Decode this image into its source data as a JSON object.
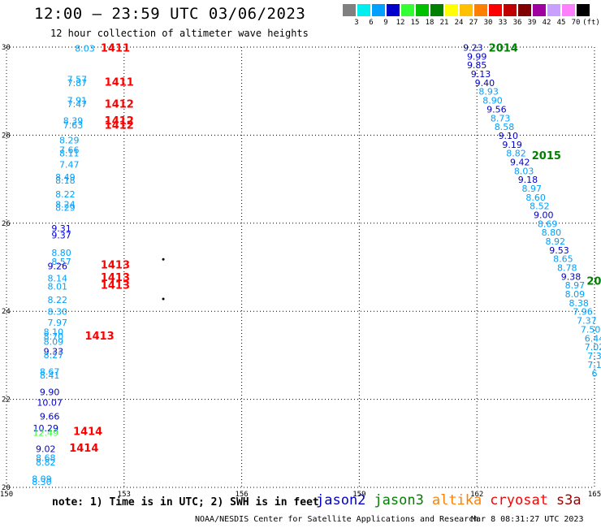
{
  "header": {
    "title": "12:00 — 23:59 UTC 03/06/2023",
    "subtitle": "12 hour collection of altimeter wave heights"
  },
  "colorscale": {
    "unit": "(ft)",
    "bins": [
      {
        "label": "3",
        "color": "#808080"
      },
      {
        "label": "6",
        "color": "#00eeee"
      },
      {
        "label": "9",
        "color": "#00a0ff"
      },
      {
        "label": "12",
        "color": "#0000cc"
      },
      {
        "label": "15",
        "color": "#33ff33"
      },
      {
        "label": "18",
        "color": "#00c000"
      },
      {
        "label": "21",
        "color": "#008000"
      },
      {
        "label": "24",
        "color": "#ffff00"
      },
      {
        "label": "27",
        "color": "#ffc000"
      },
      {
        "label": "30",
        "color": "#ff8000"
      },
      {
        "label": "33",
        "color": "#ff0000"
      },
      {
        "label": "36",
        "color": "#c00000"
      },
      {
        "label": "39",
        "color": "#800000"
      },
      {
        "label": "42",
        "color": "#a000a0"
      },
      {
        "label": "45",
        "color": "#c8a0ff"
      },
      {
        "label": "70",
        "color": "#ff80ff"
      },
      {
        "label": "",
        "color": "#000000"
      }
    ]
  },
  "chart_data": {
    "type": "scatter",
    "title": "12:00 — 23:59 UTC 03/06/2023",
    "subtitle": "12 hour collection of altimeter wave heights",
    "xlim": [
      150,
      165
    ],
    "ylim": [
      20,
      30
    ],
    "x_ticks": [
      "150",
      "153",
      "156",
      "159",
      "162",
      "165"
    ],
    "y_ticks": [
      "20",
      "22",
      "24",
      "26",
      "28",
      "30"
    ],
    "series": [
      {
        "name": "track-left",
        "points": [
          {
            "x": 152.0,
            "y": 29.97,
            "v": "8.03"
          },
          {
            "x": 151.8,
            "y": 29.27,
            "v": "7.57"
          },
          {
            "x": 151.8,
            "y": 29.19,
            "v": "7.87"
          },
          {
            "x": 151.8,
            "y": 28.79,
            "v": "7.91"
          },
          {
            "x": 151.8,
            "y": 28.71,
            "v": "7.47"
          },
          {
            "x": 151.7,
            "y": 28.33,
            "v": "8.39"
          },
          {
            "x": 151.7,
            "y": 28.23,
            "v": "7.63"
          },
          {
            "x": 151.6,
            "y": 27.89,
            "v": "8.29"
          },
          {
            "x": 151.6,
            "y": 27.67,
            "v": "7.66"
          },
          {
            "x": 151.6,
            "y": 27.59,
            "v": "8.11"
          },
          {
            "x": 151.6,
            "y": 27.33,
            "v": "7.47"
          },
          {
            "x": 151.5,
            "y": 27.05,
            "v": "8.49"
          },
          {
            "x": 151.5,
            "y": 26.97,
            "v": "8.18"
          },
          {
            "x": 151.5,
            "y": 26.66,
            "v": "8.22"
          },
          {
            "x": 151.5,
            "y": 26.43,
            "v": "8.24"
          },
          {
            "x": 151.5,
            "y": 26.36,
            "v": "8.29"
          },
          {
            "x": 151.4,
            "y": 25.89,
            "v": "9.31"
          },
          {
            "x": 151.4,
            "y": 25.73,
            "v": "9.37"
          },
          {
            "x": 151.4,
            "y": 25.33,
            "v": "8.80"
          },
          {
            "x": 151.4,
            "y": 25.13,
            "v": "8.57"
          },
          {
            "x": 151.3,
            "y": 25.03,
            "v": "9.26"
          },
          {
            "x": 151.3,
            "y": 24.75,
            "v": "8.14"
          },
          {
            "x": 151.3,
            "y": 24.57,
            "v": "8.01"
          },
          {
            "x": 151.3,
            "y": 24.26,
            "v": "8.22"
          },
          {
            "x": 151.3,
            "y": 23.99,
            "v": "8.30"
          },
          {
            "x": 151.3,
            "y": 23.75,
            "v": "7.97"
          },
          {
            "x": 151.2,
            "y": 23.53,
            "v": "8.10"
          },
          {
            "x": 151.2,
            "y": 23.43,
            "v": "8.70"
          },
          {
            "x": 151.2,
            "y": 23.31,
            "v": "8.09"
          },
          {
            "x": 151.2,
            "y": 23.09,
            "v": "9.33"
          },
          {
            "x": 151.2,
            "y": 23.01,
            "v": "8.27"
          },
          {
            "x": 151.1,
            "y": 22.63,
            "v": "8.67"
          },
          {
            "x": 151.1,
            "y": 22.55,
            "v": "8.41"
          },
          {
            "x": 151.1,
            "y": 22.17,
            "v": "9.90"
          },
          {
            "x": 151.1,
            "y": 21.93,
            "v": "10.07"
          },
          {
            "x": 151.1,
            "y": 21.61,
            "v": "9.66"
          },
          {
            "x": 151.0,
            "y": 21.35,
            "v": "10.29"
          },
          {
            "x": 151.0,
            "y": 21.25,
            "v": "12.49"
          },
          {
            "x": 151.0,
            "y": 20.88,
            "v": "9.02"
          },
          {
            "x": 151.0,
            "y": 20.67,
            "v": "8.68"
          },
          {
            "x": 151.0,
            "y": 20.57,
            "v": "8.82"
          },
          {
            "x": 150.9,
            "y": 20.19,
            "v": "8.09"
          },
          {
            "x": 150.9,
            "y": 20.13,
            "v": "8.30"
          }
        ]
      },
      {
        "name": "track-right",
        "points": [
          {
            "x": 161.9,
            "y": 29.99,
            "v": "9.23"
          },
          {
            "x": 162.0,
            "y": 29.79,
            "v": "9.99"
          },
          {
            "x": 162.0,
            "y": 29.59,
            "v": "9.85"
          },
          {
            "x": 162.1,
            "y": 29.39,
            "v": "9.13"
          },
          {
            "x": 162.2,
            "y": 29.19,
            "v": "9.40"
          },
          {
            "x": 162.3,
            "y": 28.99,
            "v": "8.93"
          },
          {
            "x": 162.4,
            "y": 28.79,
            "v": "8.90"
          },
          {
            "x": 162.5,
            "y": 28.59,
            "v": "9.56"
          },
          {
            "x": 162.6,
            "y": 28.39,
            "v": "8.73"
          },
          {
            "x": 162.7,
            "y": 28.19,
            "v": "8.58"
          },
          {
            "x": 162.8,
            "y": 27.99,
            "v": "9.10"
          },
          {
            "x": 162.9,
            "y": 27.79,
            "v": "9.19"
          },
          {
            "x": 163.0,
            "y": 27.59,
            "v": "8.82"
          },
          {
            "x": 163.1,
            "y": 27.39,
            "v": "9.42"
          },
          {
            "x": 163.2,
            "y": 27.19,
            "v": "8.03"
          },
          {
            "x": 163.3,
            "y": 26.99,
            "v": "9.18"
          },
          {
            "x": 163.4,
            "y": 26.79,
            "v": "8.97"
          },
          {
            "x": 163.5,
            "y": 26.59,
            "v": "8.60"
          },
          {
            "x": 163.6,
            "y": 26.39,
            "v": "8.52"
          },
          {
            "x": 163.7,
            "y": 26.19,
            "v": "9.00"
          },
          {
            "x": 163.8,
            "y": 25.99,
            "v": "8.69"
          },
          {
            "x": 163.9,
            "y": 25.79,
            "v": "8.80"
          },
          {
            "x": 164.0,
            "y": 25.59,
            "v": "8.92"
          },
          {
            "x": 164.1,
            "y": 25.39,
            "v": "9.53"
          },
          {
            "x": 164.2,
            "y": 25.19,
            "v": "8.65"
          },
          {
            "x": 164.3,
            "y": 24.99,
            "v": "8.78"
          },
          {
            "x": 164.4,
            "y": 24.79,
            "v": "9.38"
          },
          {
            "x": 164.5,
            "y": 24.59,
            "v": "8.97"
          },
          {
            "x": 164.5,
            "y": 24.39,
            "v": "8.09"
          },
          {
            "x": 164.6,
            "y": 24.19,
            "v": "8.38"
          },
          {
            "x": 164.7,
            "y": 23.99,
            "v": "7.96"
          },
          {
            "x": 164.8,
            "y": 23.79,
            "v": "7.37"
          },
          {
            "x": 164.9,
            "y": 23.59,
            "v": "7.50"
          },
          {
            "x": 165.0,
            "y": 23.39,
            "v": "6.44"
          },
          {
            "x": 165.0,
            "y": 23.19,
            "v": "7.02"
          },
          {
            "x": 165.0,
            "y": 22.99,
            "v": "7.3"
          },
          {
            "x": 165.0,
            "y": 22.79,
            "v": "7.1"
          },
          {
            "x": 165.0,
            "y": 22.59,
            "v": "6"
          }
        ]
      }
    ],
    "orbit_labels": [
      {
        "x": 152.4,
        "y": 29.99,
        "text": "1411",
        "color": "#ff0000"
      },
      {
        "x": 152.5,
        "y": 29.22,
        "text": "1411",
        "color": "#ff0000"
      },
      {
        "x": 152.5,
        "y": 28.72,
        "text": "1412",
        "color": "#ff0000"
      },
      {
        "x": 152.5,
        "y": 28.34,
        "text": "1412",
        "color": "#ff0000"
      },
      {
        "x": 152.5,
        "y": 28.24,
        "text": "1412",
        "color": "#ff0000"
      },
      {
        "x": 152.4,
        "y": 25.06,
        "text": "1413",
        "color": "#ff0000"
      },
      {
        "x": 152.4,
        "y": 24.78,
        "text": "1413",
        "color": "#ff0000"
      },
      {
        "x": 152.4,
        "y": 24.6,
        "text": "1413",
        "color": "#ff0000"
      },
      {
        "x": 152.0,
        "y": 23.45,
        "text": "1413",
        "color": "#ff0000"
      },
      {
        "x": 151.7,
        "y": 21.28,
        "text": "1414",
        "color": "#ff0000"
      },
      {
        "x": 151.6,
        "y": 20.9,
        "text": "1414",
        "color": "#ff0000"
      },
      {
        "x": 162.3,
        "y": 29.99,
        "text": "2014",
        "color": "#008000"
      },
      {
        "x": 163.4,
        "y": 27.55,
        "text": "2015",
        "color": "#008000"
      },
      {
        "x": 164.8,
        "y": 24.7,
        "text": "20",
        "color": "#008000"
      }
    ],
    "markers": [
      {
        "x": 154.0,
        "y": 25.18
      },
      {
        "x": 154.0,
        "y": 24.28
      }
    ]
  },
  "note": "note: 1) Time is in UTC; 2) SWH is in feet",
  "legend": [
    {
      "label": "jason2",
      "color": "#0000cc"
    },
    {
      "label": "jason3",
      "color": "#008000"
    },
    {
      "label": "altika",
      "color": "#ff8000"
    },
    {
      "label": "cryosat",
      "color": "#ff0000"
    },
    {
      "label": "s3a",
      "color": "#a00000"
    }
  ],
  "footer": {
    "credit": "NOAA/NESDIS Center for Satellite Applications and Research",
    "timestamp": "Mar  8 08:31:27 UTC 2023"
  }
}
